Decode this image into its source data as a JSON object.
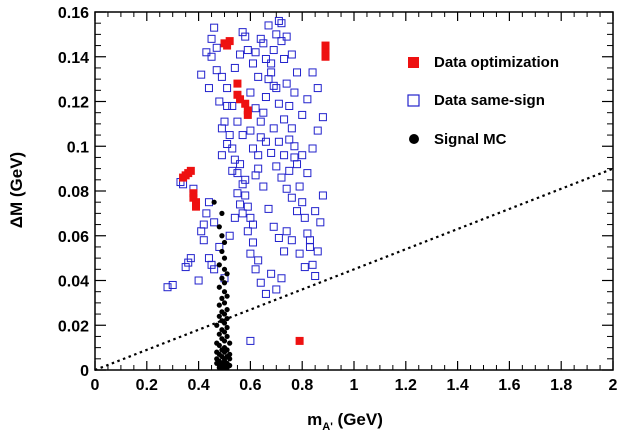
{
  "chart_data": {
    "type": "scatter",
    "xlabel": "m_A' (GeV)",
    "xlabel_main": "m",
    "xlabel_sub": "A'",
    "xlabel_tail": " (GeV)",
    "ylabel": "ΔM (GeV)",
    "xlim": [
      0,
      2
    ],
    "ylim": [
      0,
      0.16
    ],
    "x_ticks": [
      "0",
      "0.2",
      "0.4",
      "0.6",
      "0.8",
      "1",
      "1.2",
      "1.4",
      "1.6",
      "1.8",
      "2"
    ],
    "y_ticks": [
      "0",
      "0.02",
      "0.04",
      "0.06",
      "0.08",
      "0.1",
      "0.12",
      "0.14",
      "0.16"
    ],
    "legend": {
      "placement": "top-right",
      "entries": [
        {
          "label": "Data optimization",
          "marker": "filled-square",
          "color": "#ee1111"
        },
        {
          "label": "Data same-sign",
          "marker": "open-square",
          "color": "#2222cc"
        },
        {
          "label": "Signal MC",
          "marker": "filled-circle",
          "color": "#000000"
        }
      ]
    },
    "cut_line": {
      "style": "dotted",
      "points": [
        [
          0,
          0
        ],
        [
          2,
          0.09
        ]
      ]
    },
    "series": [
      {
        "name": "Data optimization",
        "marker": "filled-square",
        "color": "#ee1111",
        "points": [
          [
            0.34,
            0.086
          ],
          [
            0.35,
            0.087
          ],
          [
            0.36,
            0.088
          ],
          [
            0.37,
            0.089
          ],
          [
            0.38,
            0.079
          ],
          [
            0.38,
            0.077
          ],
          [
            0.39,
            0.075
          ],
          [
            0.39,
            0.073
          ],
          [
            0.5,
            0.146
          ],
          [
            0.52,
            0.147
          ],
          [
            0.51,
            0.145
          ],
          [
            0.55,
            0.128
          ],
          [
            0.55,
            0.123
          ],
          [
            0.56,
            0.121
          ],
          [
            0.58,
            0.119
          ],
          [
            0.59,
            0.116
          ],
          [
            0.59,
            0.114
          ],
          [
            0.89,
            0.145
          ],
          [
            0.89,
            0.142
          ],
          [
            0.89,
            0.14
          ],
          [
            0.79,
            0.013
          ]
        ]
      },
      {
        "name": "Data same-sign",
        "marker": "open-square",
        "color": "#2222cc",
        "points": [
          [
            0.28,
            0.037
          ],
          [
            0.3,
            0.038
          ],
          [
            0.33,
            0.084
          ],
          [
            0.34,
            0.083
          ],
          [
            0.35,
            0.046
          ],
          [
            0.36,
            0.048
          ],
          [
            0.37,
            0.05
          ],
          [
            0.38,
            0.081
          ],
          [
            0.4,
            0.04
          ],
          [
            0.41,
            0.062
          ],
          [
            0.42,
            0.065
          ],
          [
            0.42,
            0.058
          ],
          [
            0.43,
            0.07
          ],
          [
            0.44,
            0.05
          ],
          [
            0.45,
            0.047
          ],
          [
            0.46,
            0.045
          ],
          [
            0.41,
            0.132
          ],
          [
            0.44,
            0.126
          ],
          [
            0.45,
            0.14
          ],
          [
            0.46,
            0.153
          ],
          [
            0.47,
            0.134
          ],
          [
            0.48,
            0.12
          ],
          [
            0.49,
            0.108
          ],
          [
            0.5,
            0.111
          ],
          [
            0.51,
            0.118
          ],
          [
            0.52,
            0.105
          ],
          [
            0.53,
            0.099
          ],
          [
            0.54,
            0.094
          ],
          [
            0.55,
            0.088
          ],
          [
            0.56,
            0.092
          ],
          [
            0.57,
            0.083
          ],
          [
            0.58,
            0.078
          ],
          [
            0.59,
            0.073
          ],
          [
            0.6,
            0.068
          ],
          [
            0.61,
            0.065
          ],
          [
            0.62,
            0.087
          ],
          [
            0.63,
            0.096
          ],
          [
            0.64,
            0.104
          ],
          [
            0.65,
            0.115
          ],
          [
            0.66,
            0.122
          ],
          [
            0.67,
            0.13
          ],
          [
            0.68,
            0.137
          ],
          [
            0.69,
            0.143
          ],
          [
            0.7,
            0.15
          ],
          [
            0.71,
            0.156
          ],
          [
            0.72,
            0.147
          ],
          [
            0.73,
            0.139
          ],
          [
            0.74,
            0.128
          ],
          [
            0.75,
            0.118
          ],
          [
            0.76,
            0.108
          ],
          [
            0.77,
            0.1
          ],
          [
            0.78,
            0.092
          ],
          [
            0.79,
            0.082
          ],
          [
            0.8,
            0.075
          ],
          [
            0.81,
            0.068
          ],
          [
            0.82,
            0.061
          ],
          [
            0.83,
            0.055
          ],
          [
            0.84,
            0.047
          ],
          [
            0.85,
            0.042
          ],
          [
            0.86,
            0.053
          ],
          [
            0.87,
            0.066
          ],
          [
            0.88,
            0.078
          ],
          [
            0.57,
            0.151
          ],
          [
            0.59,
            0.143
          ],
          [
            0.61,
            0.137
          ],
          [
            0.63,
            0.131
          ],
          [
            0.65,
            0.146
          ],
          [
            0.67,
            0.154
          ],
          [
            0.69,
            0.127
          ],
          [
            0.71,
            0.119
          ],
          [
            0.73,
            0.112
          ],
          [
            0.75,
            0.103
          ],
          [
            0.77,
            0.095
          ],
          [
            0.6,
            0.052
          ],
          [
            0.62,
            0.045
          ],
          [
            0.64,
            0.039
          ],
          [
            0.66,
            0.034
          ],
          [
            0.68,
            0.043
          ],
          [
            0.7,
            0.036
          ],
          [
            0.72,
            0.041
          ],
          [
            0.74,
            0.062
          ],
          [
            0.76,
            0.058
          ],
          [
            0.78,
            0.071
          ],
          [
            0.6,
            0.013
          ],
          [
            0.54,
            0.135
          ],
          [
            0.56,
            0.141
          ],
          [
            0.58,
            0.149
          ],
          [
            0.6,
            0.124
          ],
          [
            0.62,
            0.117
          ],
          [
            0.64,
            0.111
          ],
          [
            0.66,
            0.102
          ],
          [
            0.68,
            0.097
          ],
          [
            0.7,
            0.091
          ],
          [
            0.72,
            0.086
          ],
          [
            0.74,
            0.081
          ],
          [
            0.76,
            0.077
          ],
          [
            0.49,
            0.096
          ],
          [
            0.51,
            0.101
          ],
          [
            0.53,
            0.089
          ],
          [
            0.55,
            0.079
          ],
          [
            0.57,
            0.07
          ],
          [
            0.59,
            0.062
          ],
          [
            0.61,
            0.057
          ],
          [
            0.63,
            0.049
          ],
          [
            0.52,
            0.06
          ],
          [
            0.54,
            0.068
          ],
          [
            0.56,
            0.074
          ],
          [
            0.58,
            0.085
          ],
          [
            0.8,
            0.114
          ],
          [
            0.82,
            0.121
          ],
          [
            0.84,
            0.133
          ],
          [
            0.86,
            0.126
          ],
          [
            0.88,
            0.113
          ],
          [
            0.8,
            0.096
          ],
          [
            0.82,
            0.088
          ],
          [
            0.84,
            0.099
          ],
          [
            0.86,
            0.107
          ],
          [
            0.78,
            0.133
          ],
          [
            0.76,
            0.141
          ],
          [
            0.74,
            0.149
          ],
          [
            0.72,
            0.155
          ],
          [
            0.79,
            0.052
          ],
          [
            0.81,
            0.046
          ],
          [
            0.83,
            0.058
          ],
          [
            0.85,
            0.071
          ],
          [
            0.5,
            0.041
          ],
          [
            0.48,
            0.055
          ],
          [
            0.46,
            0.066
          ],
          [
            0.44,
            0.075
          ],
          [
            0.67,
            0.072
          ],
          [
            0.69,
            0.064
          ],
          [
            0.71,
            0.059
          ],
          [
            0.73,
            0.053
          ],
          [
            0.65,
            0.082
          ],
          [
            0.63,
            0.09
          ],
          [
            0.61,
            0.099
          ],
          [
            0.69,
            0.108
          ],
          [
            0.71,
            0.102
          ],
          [
            0.73,
            0.096
          ],
          [
            0.75,
            0.089
          ],
          [
            0.62,
            0.142
          ],
          [
            0.64,
            0.148
          ],
          [
            0.66,
            0.139
          ],
          [
            0.68,
            0.133
          ],
          [
            0.7,
            0.126
          ],
          [
            0.55,
            0.111
          ],
          [
            0.57,
            0.105
          ],
          [
            0.6,
            0.107
          ],
          [
            0.53,
            0.118
          ],
          [
            0.51,
            0.126
          ],
          [
            0.49,
            0.131
          ],
          [
            0.47,
            0.144
          ],
          [
            0.45,
            0.148
          ],
          [
            0.43,
            0.142
          ],
          [
            0.77,
            0.124
          ]
        ]
      },
      {
        "name": "Signal MC",
        "marker": "filled-circle",
        "color": "#000000",
        "points": [
          [
            0.46,
            0.075
          ],
          [
            0.49,
            0.07
          ],
          [
            0.48,
            0.064
          ],
          [
            0.49,
            0.06
          ],
          [
            0.5,
            0.057
          ],
          [
            0.49,
            0.053
          ],
          [
            0.5,
            0.05
          ],
          [
            0.48,
            0.047
          ],
          [
            0.5,
            0.045
          ],
          [
            0.51,
            0.043
          ],
          [
            0.49,
            0.041
          ],
          [
            0.5,
            0.039
          ],
          [
            0.48,
            0.037
          ],
          [
            0.5,
            0.035
          ],
          [
            0.51,
            0.033
          ],
          [
            0.49,
            0.032
          ],
          [
            0.5,
            0.03
          ],
          [
            0.48,
            0.029
          ],
          [
            0.51,
            0.027
          ],
          [
            0.49,
            0.026
          ],
          [
            0.5,
            0.025
          ],
          [
            0.48,
            0.024
          ],
          [
            0.51,
            0.023
          ],
          [
            0.49,
            0.022
          ],
          [
            0.5,
            0.021
          ],
          [
            0.47,
            0.02
          ],
          [
            0.51,
            0.019
          ],
          [
            0.49,
            0.018
          ],
          [
            0.5,
            0.017
          ],
          [
            0.48,
            0.016
          ],
          [
            0.51,
            0.015
          ],
          [
            0.49,
            0.014
          ],
          [
            0.5,
            0.013
          ],
          [
            0.47,
            0.012
          ],
          [
            0.52,
            0.012
          ],
          [
            0.48,
            0.011
          ],
          [
            0.5,
            0.01
          ],
          [
            0.51,
            0.009
          ],
          [
            0.49,
            0.009
          ],
          [
            0.47,
            0.008
          ],
          [
            0.5,
            0.008
          ],
          [
            0.52,
            0.007
          ],
          [
            0.48,
            0.007
          ],
          [
            0.49,
            0.006
          ],
          [
            0.51,
            0.006
          ],
          [
            0.5,
            0.005
          ],
          [
            0.47,
            0.005
          ],
          [
            0.52,
            0.005
          ],
          [
            0.48,
            0.004
          ],
          [
            0.5,
            0.004
          ],
          [
            0.49,
            0.003
          ],
          [
            0.51,
            0.003
          ],
          [
            0.47,
            0.003
          ],
          [
            0.5,
            0.002
          ],
          [
            0.48,
            0.002
          ],
          [
            0.52,
            0.002
          ],
          [
            0.49,
            0.001
          ],
          [
            0.51,
            0.001
          ],
          [
            0.5,
            0.001
          ],
          [
            0.48,
            0.001
          ]
        ]
      }
    ]
  }
}
